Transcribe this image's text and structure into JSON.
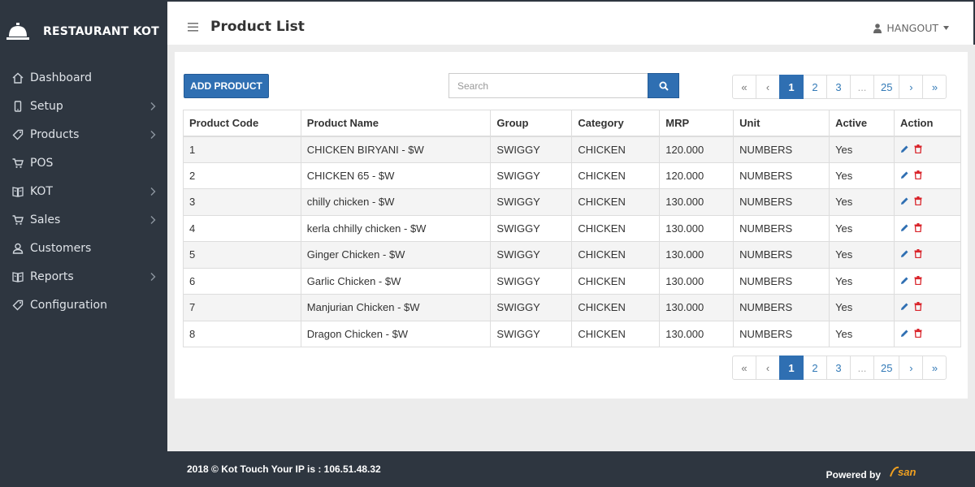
{
  "app": {
    "title": "RESTAURANT KOT"
  },
  "sidebar": {
    "items": [
      {
        "label": "Dashboard",
        "icon": "home-icon",
        "has_submenu": false
      },
      {
        "label": "Setup",
        "icon": "mobile-icon",
        "has_submenu": true
      },
      {
        "label": "Products",
        "icon": "tag-icon",
        "has_submenu": true
      },
      {
        "label": "POS",
        "icon": "cart-icon",
        "has_submenu": false
      },
      {
        "label": "KOT",
        "icon": "book-icon",
        "has_submenu": true
      },
      {
        "label": "Sales",
        "icon": "cart-icon",
        "has_submenu": true
      },
      {
        "label": "Customers",
        "icon": "user-icon",
        "has_submenu": false
      },
      {
        "label": "Reports",
        "icon": "book-icon",
        "has_submenu": true
      },
      {
        "label": "Configuration",
        "icon": "tag-icon",
        "has_submenu": false
      }
    ]
  },
  "header": {
    "title": "Product List",
    "user": "HANGOUT"
  },
  "toolbar": {
    "add_label": "ADD PRODUCT",
    "search_placeholder": "Search"
  },
  "pagination": {
    "first": "«",
    "prev": "‹",
    "next": "›",
    "last": "»",
    "pages": [
      "1",
      "2",
      "3",
      "...",
      "25"
    ],
    "current": "1"
  },
  "table": {
    "columns": [
      "Product Code",
      "Product Name",
      "Group",
      "Category",
      "MRP",
      "Unit",
      "Active",
      "Action"
    ],
    "rows": [
      [
        "1",
        "CHICKEN BIRYANI - $W",
        "SWIGGY",
        "CHICKEN",
        "120.000",
        "NUMBERS",
        "Yes"
      ],
      [
        "2",
        "CHICKEN 65 - $W",
        "SWIGGY",
        "CHICKEN",
        "120.000",
        "NUMBERS",
        "Yes"
      ],
      [
        "3",
        "chilly chicken - $W",
        "SWIGGY",
        "CHICKEN",
        "130.000",
        "NUMBERS",
        "Yes"
      ],
      [
        "4",
        "kerla chhilly chicken - $W",
        "SWIGGY",
        "CHICKEN",
        "130.000",
        "NUMBERS",
        "Yes"
      ],
      [
        "5",
        "Ginger Chicken - $W",
        "SWIGGY",
        "CHICKEN",
        "130.000",
        "NUMBERS",
        "Yes"
      ],
      [
        "6",
        "Garlic Chicken - $W",
        "SWIGGY",
        "CHICKEN",
        "130.000",
        "NUMBERS",
        "Yes"
      ],
      [
        "7",
        "Manjurian Chicken - $W",
        "SWIGGY",
        "CHICKEN",
        "130.000",
        "NUMBERS",
        "Yes"
      ],
      [
        "8",
        "Dragon Chicken - $W",
        "SWIGGY",
        "CHICKEN",
        "130.000",
        "NUMBERS",
        "Yes"
      ]
    ]
  },
  "footer": {
    "text": "2018 © Kot Touch Your IP is : 106.51.48.32",
    "powered": "Powered by",
    "powered_logo": "san"
  },
  "colors": {
    "sidebar": "#2e3640",
    "primary": "#2f6fb2",
    "delete": "#d9242b",
    "logo": "#f0a020"
  }
}
